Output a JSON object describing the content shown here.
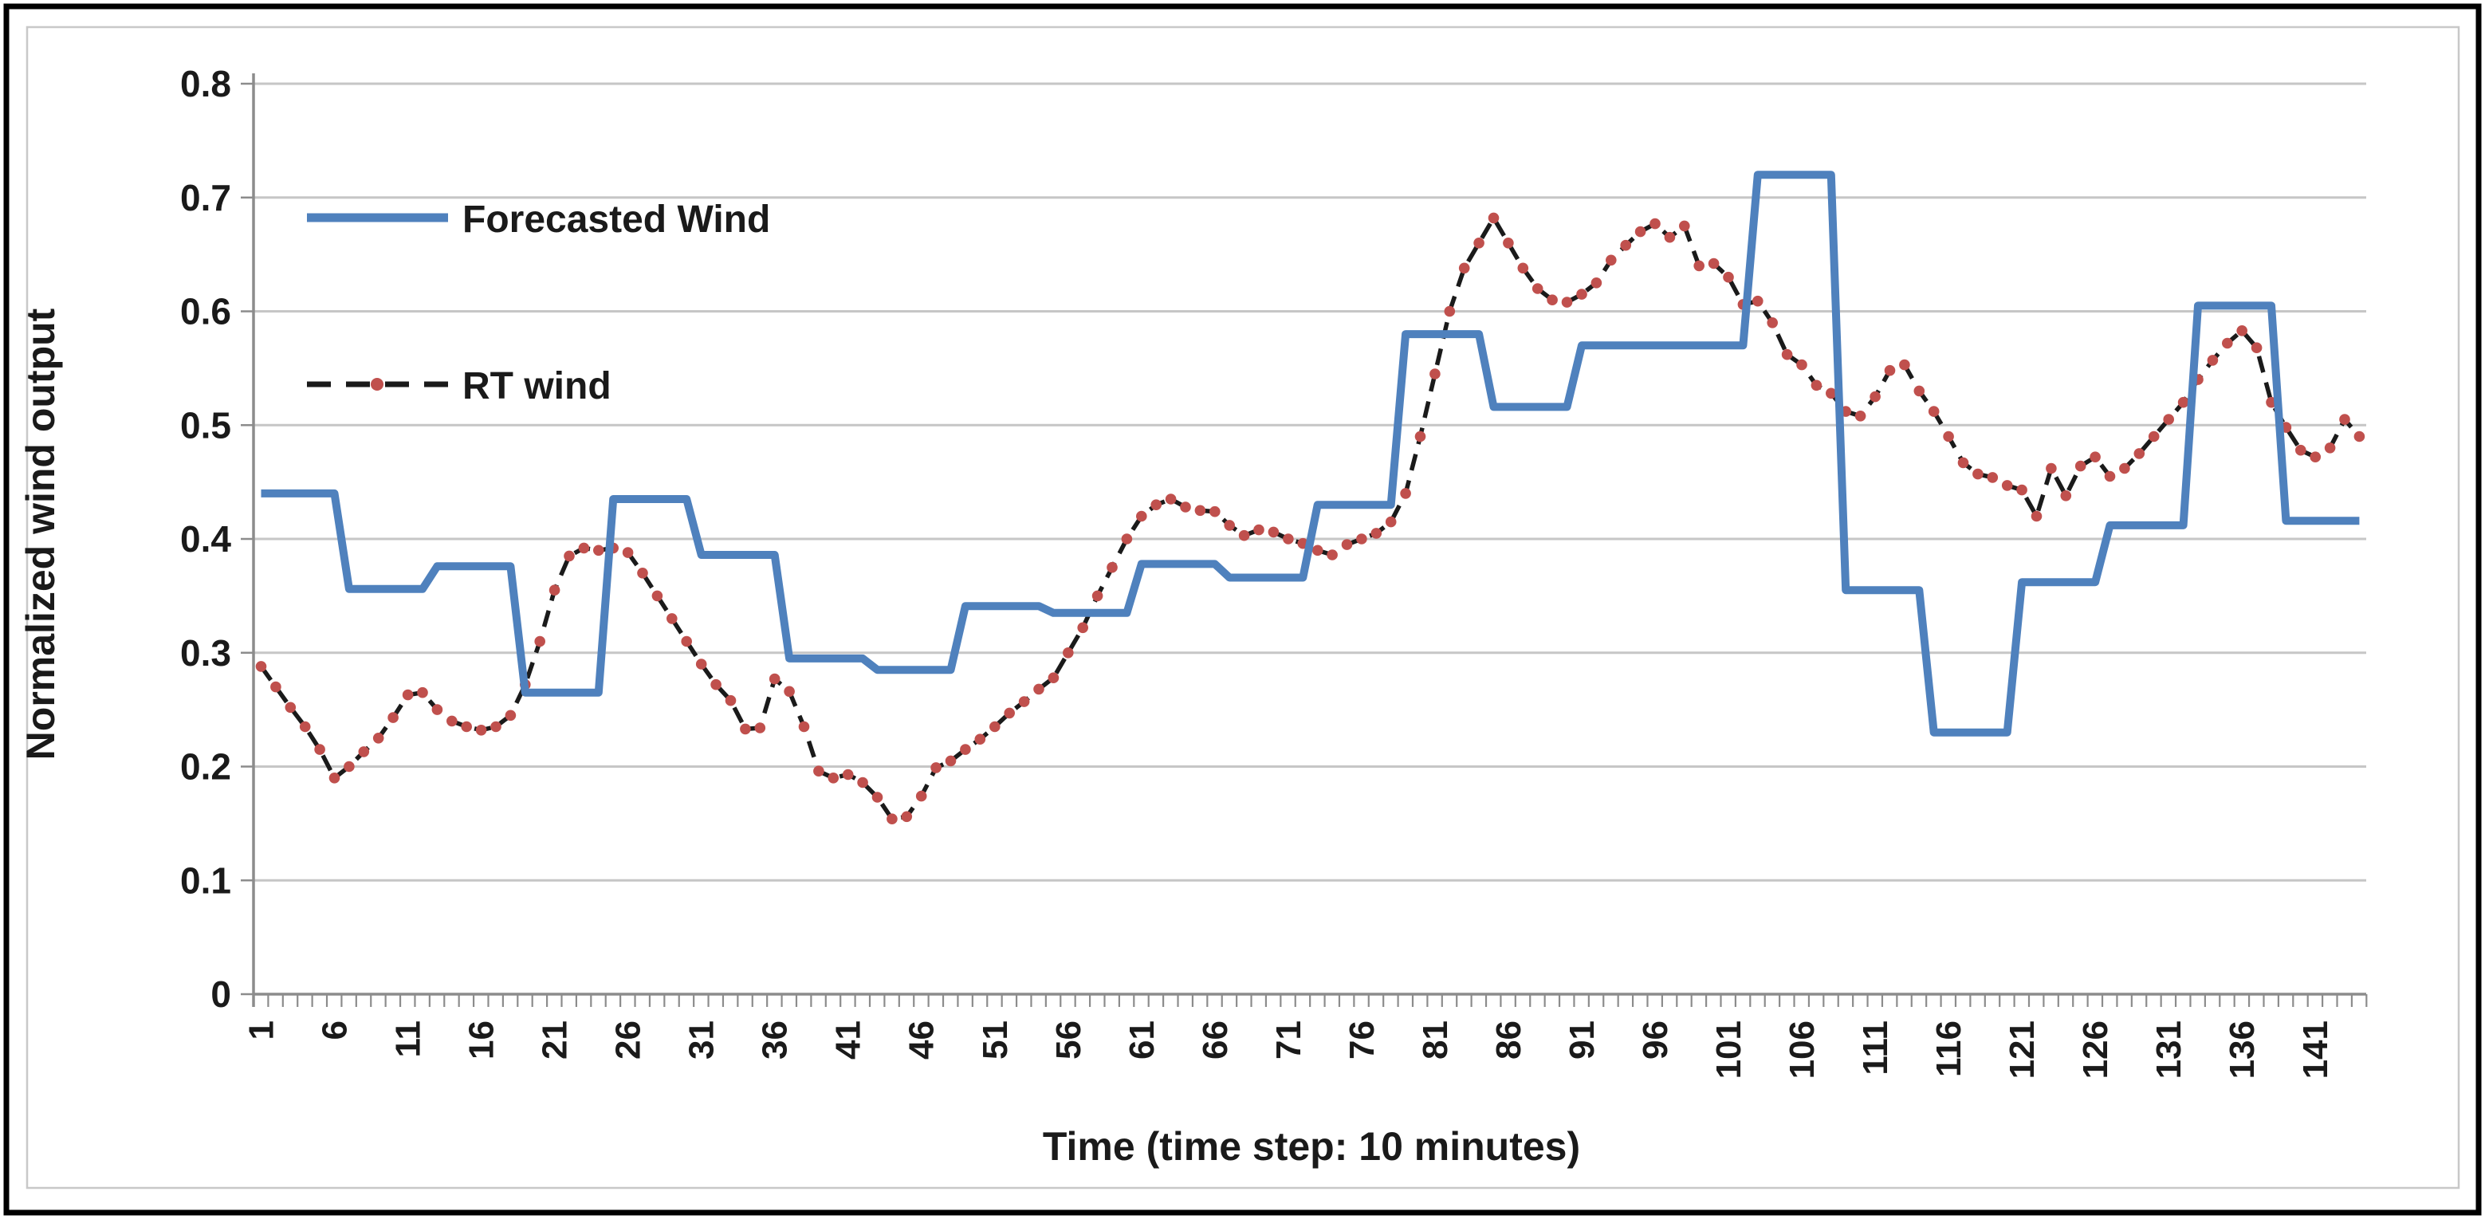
{
  "chart_data": {
    "type": "line",
    "title": "",
    "xlabel": "Time (time step: 10 minutes)",
    "ylabel": "Normalized wind output",
    "x_start": 1,
    "x_end": 144,
    "ylim": [
      0,
      0.8
    ],
    "grid": "horizontal",
    "legend_position": "top-left-inside",
    "x_tick_labels": [
      "1",
      "6",
      "11",
      "16",
      "21",
      "26",
      "31",
      "36",
      "41",
      "46",
      "51",
      "56",
      "61",
      "66",
      "71",
      "76",
      "81",
      "86",
      "91",
      "96",
      "101",
      "106",
      "111",
      "116",
      "121",
      "126",
      "131",
      "136",
      "141"
    ],
    "x_tick_step": 5,
    "y_tick_labels": [
      "0",
      "0.1",
      "0.2",
      "0.3",
      "0.4",
      "0.5",
      "0.6",
      "0.7",
      "0.8"
    ],
    "colors": {
      "forecast_blue": "#4F81BD",
      "rt_dash_black": "#1a1a1a",
      "rt_marker_red": "#C0504D",
      "gridline_gray": "#C6C6C6",
      "axis_gray": "#8C8C8C",
      "chart_border_gray": "#C8C8C8",
      "outer_frame_black": "#000000"
    },
    "series": [
      {
        "name": "Forecasted Wind",
        "style": "solid",
        "values": [
          0.44,
          0.44,
          0.44,
          0.44,
          0.44,
          0.44,
          0.356,
          0.356,
          0.356,
          0.356,
          0.356,
          0.356,
          0.376,
          0.376,
          0.376,
          0.376,
          0.376,
          0.376,
          0.265,
          0.265,
          0.265,
          0.265,
          0.265,
          0.265,
          0.435,
          0.435,
          0.435,
          0.435,
          0.435,
          0.435,
          0.386,
          0.386,
          0.386,
          0.386,
          0.386,
          0.386,
          0.295,
          0.295,
          0.295,
          0.295,
          0.295,
          0.295,
          0.285,
          0.285,
          0.285,
          0.285,
          0.285,
          0.285,
          0.341,
          0.341,
          0.341,
          0.341,
          0.341,
          0.341,
          0.335,
          0.335,
          0.335,
          0.335,
          0.335,
          0.335,
          0.378,
          0.378,
          0.378,
          0.378,
          0.378,
          0.378,
          0.366,
          0.366,
          0.366,
          0.366,
          0.366,
          0.366,
          0.43,
          0.43,
          0.43,
          0.43,
          0.43,
          0.43,
          0.58,
          0.58,
          0.58,
          0.58,
          0.58,
          0.58,
          0.516,
          0.516,
          0.516,
          0.516,
          0.516,
          0.516,
          0.57,
          0.57,
          0.57,
          0.57,
          0.57,
          0.57,
          0.57,
          0.57,
          0.57,
          0.57,
          0.57,
          0.57,
          0.72,
          0.72,
          0.72,
          0.72,
          0.72,
          0.72,
          0.355,
          0.355,
          0.355,
          0.355,
          0.355,
          0.355,
          0.23,
          0.23,
          0.23,
          0.23,
          0.23,
          0.23,
          0.362,
          0.362,
          0.362,
          0.362,
          0.362,
          0.362,
          0.412,
          0.412,
          0.412,
          0.412,
          0.412,
          0.412,
          0.605,
          0.605,
          0.605,
          0.605,
          0.605,
          0.605,
          0.416,
          0.416,
          0.416,
          0.416,
          0.416,
          0.416
        ]
      },
      {
        "name": "RT wind",
        "style": "dashed-with-markers",
        "values": [
          0.288,
          0.27,
          0.252,
          0.235,
          0.215,
          0.19,
          0.2,
          0.213,
          0.225,
          0.243,
          0.263,
          0.265,
          0.25,
          0.24,
          0.235,
          0.232,
          0.235,
          0.245,
          0.272,
          0.31,
          0.355,
          0.385,
          0.392,
          0.39,
          0.392,
          0.388,
          0.37,
          0.35,
          0.33,
          0.31,
          0.29,
          0.272,
          0.258,
          0.233,
          0.234,
          0.277,
          0.266,
          0.235,
          0.196,
          0.19,
          0.193,
          0.186,
          0.173,
          0.154,
          0.156,
          0.174,
          0.199,
          0.205,
          0.215,
          0.224,
          0.235,
          0.247,
          0.257,
          0.268,
          0.278,
          0.3,
          0.322,
          0.35,
          0.375,
          0.4,
          0.42,
          0.43,
          0.435,
          0.428,
          0.425,
          0.424,
          0.412,
          0.403,
          0.408,
          0.406,
          0.4,
          0.396,
          0.39,
          0.386,
          0.395,
          0.4,
          0.405,
          0.415,
          0.44,
          0.49,
          0.545,
          0.6,
          0.638,
          0.66,
          0.682,
          0.66,
          0.638,
          0.62,
          0.61,
          0.608,
          0.615,
          0.625,
          0.645,
          0.658,
          0.67,
          0.677,
          0.665,
          0.675,
          0.64,
          0.642,
          0.63,
          0.606,
          0.609,
          0.59,
          0.562,
          0.553,
          0.535,
          0.528,
          0.512,
          0.508,
          0.525,
          0.548,
          0.553,
          0.53,
          0.512,
          0.49,
          0.467,
          0.457,
          0.454,
          0.447,
          0.443,
          0.42,
          0.462,
          0.438,
          0.464,
          0.472,
          0.455,
          0.462,
          0.475,
          0.49,
          0.505,
          0.52,
          0.54,
          0.557,
          0.572,
          0.583,
          0.568,
          0.52,
          0.498,
          0.478,
          0.472,
          0.48,
          0.505,
          0.49
        ]
      }
    ],
    "legend": {
      "forecast_label": "Forecasted Wind",
      "rt_label": "RT wind"
    }
  }
}
